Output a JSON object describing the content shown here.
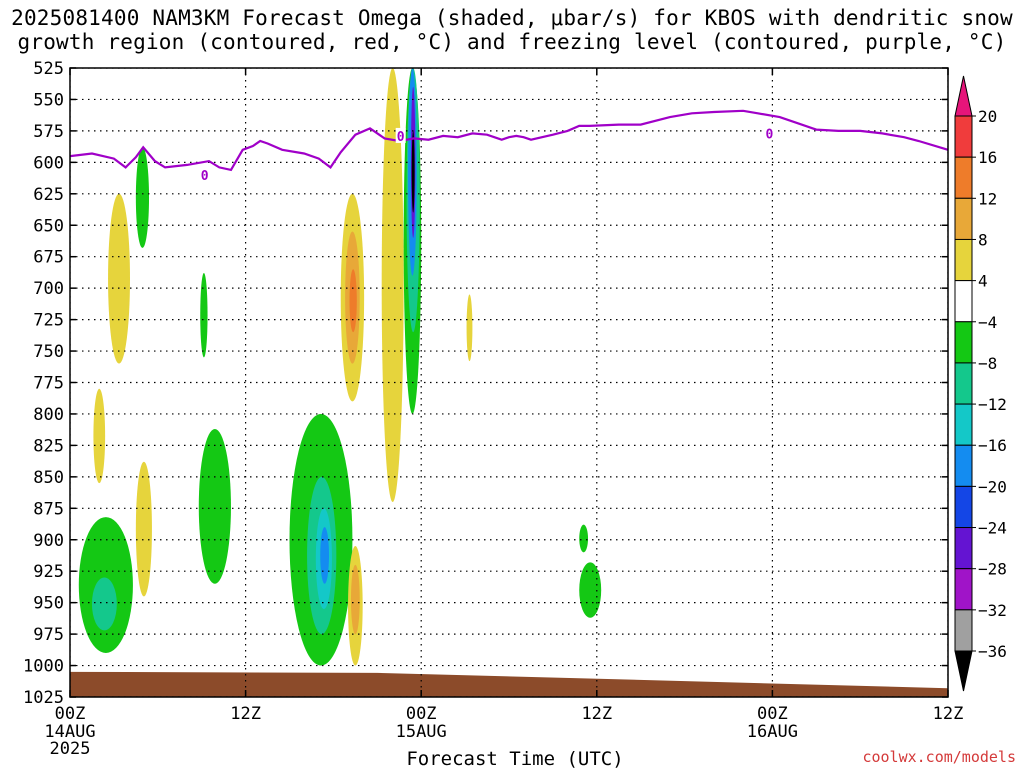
{
  "title": {
    "line1": "2025081400 NAM3KM Forecast Omega (shaded, μbar/s) for KBOS with dendritic snow",
    "line2": "growth region (contoured, red, °C) and freezing level (contoured, purple, °C)"
  },
  "credit": "coolwx.com/models",
  "chart_data": {
    "type": "heatmap",
    "title": "2025081400 NAM3KM Forecast Omega (shaded, μbar/s) for KBOS with dendritic snow growth region (contoured, red, °C) and freezing level (contoured, purple, °C)",
    "xlabel": "Forecast Time (UTC)",
    "ylabel": "",
    "x_range_hours": [
      0,
      60
    ],
    "y_range_hpa": [
      525,
      1025
    ],
    "y_ticks": [
      525,
      550,
      575,
      600,
      625,
      650,
      675,
      700,
      725,
      750,
      775,
      800,
      825,
      850,
      875,
      900,
      925,
      950,
      975,
      1000,
      1025
    ],
    "x_ticks": [
      {
        "hour": 0,
        "label": "00Z",
        "sub1": "14AUG",
        "sub2": "2025"
      },
      {
        "hour": 12,
        "label": "12Z",
        "sub1": "",
        "sub2": ""
      },
      {
        "hour": 24,
        "label": "00Z",
        "sub1": "15AUG",
        "sub2": ""
      },
      {
        "hour": 36,
        "label": "12Z",
        "sub1": "",
        "sub2": ""
      },
      {
        "hour": 48,
        "label": "00Z",
        "sub1": "16AUG",
        "sub2": ""
      },
      {
        "hour": 60,
        "label": "12Z",
        "sub1": "",
        "sub2": ""
      }
    ],
    "grid": "dotted",
    "colorbar": {
      "units": "μbar/s",
      "labels": [
        "20",
        "16",
        "12",
        "8",
        "4",
        "−4",
        "−8",
        "−12",
        "−16",
        "−20",
        "−24",
        "−28",
        "−32",
        "−36"
      ],
      "bins": [
        {
          "range": ">20",
          "color": "#e6157a"
        },
        {
          "range": "16 to 20",
          "color": "#f03c3c"
        },
        {
          "range": "12 to 16",
          "color": "#ee7c2a"
        },
        {
          "range": "8 to 12",
          "color": "#e8a838"
        },
        {
          "range": "4 to 8",
          "color": "#e6d43c"
        },
        {
          "range": "-4 to 4",
          "color": "#ffffff"
        },
        {
          "range": "-8 to -4",
          "color": "#14c814"
        },
        {
          "range": "-12 to -8",
          "color": "#14c88c"
        },
        {
          "range": "-16 to -12",
          "color": "#14c8c8"
        },
        {
          "range": "-20 to -16",
          "color": "#148cf0"
        },
        {
          "range": "-24 to -20",
          "color": "#1446e6"
        },
        {
          "range": "-28 to -24",
          "color": "#6414d2"
        },
        {
          "range": "-32 to -28",
          "color": "#a014c8"
        },
        {
          "range": "-36 to -32",
          "color": "#a0a0a0"
        },
        {
          "range": "<-36",
          "color": "#000000"
        }
      ]
    },
    "freezing_level": {
      "label": "0",
      "color": "#a000c8",
      "points": [
        [
          0,
          595
        ],
        [
          1.5,
          593
        ],
        [
          3,
          597
        ],
        [
          3.8,
          604
        ],
        [
          4.5,
          596
        ],
        [
          5,
          588
        ],
        [
          5.8,
          599
        ],
        [
          6.5,
          604
        ],
        [
          8,
          602
        ],
        [
          9.5,
          599
        ],
        [
          10.2,
          604
        ],
        [
          11,
          606
        ],
        [
          11.8,
          590
        ],
        [
          12.5,
          587
        ],
        [
          13,
          583
        ],
        [
          13.5,
          585
        ],
        [
          14.5,
          590
        ],
        [
          16,
          593
        ],
        [
          17,
          597
        ],
        [
          17.8,
          604
        ],
        [
          18.5,
          592
        ],
        [
          19.5,
          578
        ],
        [
          20.5,
          573
        ],
        [
          21.5,
          581
        ],
        [
          22.5,
          583
        ],
        [
          23.5,
          581
        ],
        [
          24.5,
          582
        ],
        [
          25.5,
          579
        ],
        [
          26.5,
          580
        ],
        [
          27.5,
          577
        ],
        [
          28.5,
          578
        ],
        [
          29.5,
          582
        ],
        [
          30,
          580
        ],
        [
          30.5,
          579
        ],
        [
          31,
          580
        ],
        [
          31.5,
          582
        ],
        [
          33,
          578
        ],
        [
          34,
          575
        ],
        [
          34.8,
          571
        ],
        [
          35.5,
          571
        ],
        [
          37.5,
          570
        ],
        [
          39,
          570
        ],
        [
          41,
          564
        ],
        [
          42.5,
          561
        ],
        [
          44,
          560
        ],
        [
          46,
          559
        ],
        [
          47,
          561
        ],
        [
          48.5,
          564
        ],
        [
          49.5,
          568
        ],
        [
          51,
          574
        ],
        [
          52.5,
          575
        ],
        [
          54,
          575
        ],
        [
          55.5,
          577
        ],
        [
          57,
          580
        ],
        [
          58,
          583
        ],
        [
          60,
          590
        ]
      ],
      "label_points": [
        [
          9.2,
          610
        ],
        [
          22.6,
          579
        ],
        [
          47.8,
          577
        ]
      ]
    },
    "omega_features": [
      {
        "id": "yellow-early-upper",
        "color": "#e6d43c",
        "x": [
          2.6,
          4.1
        ],
        "y": [
          625,
          760
        ],
        "note": "4 to 8"
      },
      {
        "id": "green-early-upper",
        "color": "#14c814",
        "x": [
          4.5,
          5.4
        ],
        "y": [
          588,
          668
        ],
        "note": "-4 to -8"
      },
      {
        "id": "yellow-early-mid",
        "color": "#e6d43c",
        "x": [
          1.6,
          2.4
        ],
        "y": [
          780,
          855
        ],
        "note": "4 to 8"
      },
      {
        "id": "yellow-early-low",
        "color": "#e6d43c",
        "x": [
          4.5,
          5.6
        ],
        "y": [
          838,
          945
        ],
        "note": "4 to 8"
      },
      {
        "id": "green-early-low",
        "color": "#14c814",
        "x": [
          0.6,
          4.3
        ],
        "y": [
          882,
          990
        ],
        "note": "-4 to -8"
      },
      {
        "id": "teal-early-low",
        "color": "#14c88c",
        "x": [
          1.5,
          3.2
        ],
        "y": [
          930,
          972
        ],
        "note": "-8 to -12"
      },
      {
        "id": "green-mid-upper",
        "color": "#14c814",
        "x": [
          8.9,
          9.4
        ],
        "y": [
          688,
          755
        ],
        "note": "-4 to -8"
      },
      {
        "id": "green-mid-low",
        "color": "#14c814",
        "x": [
          8.8,
          11.0
        ],
        "y": [
          812,
          935
        ],
        "note": "-4 to -8"
      },
      {
        "id": "green-afternoon-low",
        "color": "#14c814",
        "x": [
          15.0,
          19.3
        ],
        "y": [
          800,
          1000
        ],
        "note": "-4 to -8"
      },
      {
        "id": "teal-afternoon-low",
        "color": "#14c88c",
        "x": [
          16.2,
          18.2
        ],
        "y": [
          850,
          975
        ],
        "note": "-8 to -12"
      },
      {
        "id": "cyan-afternoon-low",
        "color": "#14c8c8",
        "x": [
          16.8,
          17.9
        ],
        "y": [
          875,
          955
        ],
        "note": "-12 to -16"
      },
      {
        "id": "blue-afternoon-low",
        "color": "#148cf0",
        "x": [
          17.1,
          17.7
        ],
        "y": [
          890,
          935
        ],
        "note": "-16 to -20"
      },
      {
        "id": "yellow-evening-mid",
        "color": "#e6d43c",
        "x": [
          18.5,
          20.1
        ],
        "y": [
          625,
          790
        ],
        "note": "4 to 8"
      },
      {
        "id": "orange-evening-mid",
        "color": "#e8a838",
        "x": [
          18.8,
          19.8
        ],
        "y": [
          655,
          760
        ],
        "note": "8 to 12"
      },
      {
        "id": "orange-evening-core",
        "color": "#ee7c2a",
        "x": [
          19.1,
          19.6
        ],
        "y": [
          685,
          735
        ],
        "note": "12 to 16"
      },
      {
        "id": "yellow-evening-low",
        "color": "#e6d43c",
        "x": [
          19.0,
          20.0
        ],
        "y": [
          905,
          1000
        ],
        "note": "4 to 8"
      },
      {
        "id": "orange-evening-low",
        "color": "#e8a838",
        "x": [
          19.2,
          19.8
        ],
        "y": [
          920,
          975
        ],
        "note": "8 to 12"
      },
      {
        "id": "yellow-strip-pre-00z",
        "color": "#e6d43c",
        "x": [
          21.3,
          22.8
        ],
        "y": [
          525,
          870
        ],
        "note": "4 to 8"
      },
      {
        "id": "green-00z-column",
        "color": "#14c814",
        "x": [
          22.8,
          24.0
        ],
        "y": [
          525,
          800
        ],
        "note": "-4 to -8"
      },
      {
        "id": "teal-00z-column",
        "color": "#14c88c",
        "x": [
          23.0,
          23.9
        ],
        "y": [
          525,
          735
        ],
        "note": "-8 to -12"
      },
      {
        "id": "blue-00z-column",
        "color": "#148cf0",
        "x": [
          23.1,
          23.7
        ],
        "y": [
          525,
          690
        ],
        "note": "-16 to -20"
      },
      {
        "id": "purple-00z-column",
        "color": "#6414d2",
        "x": [
          23.3,
          23.6
        ],
        "y": [
          540,
          660
        ],
        "note": "-24 to -28"
      },
      {
        "id": "black-00z-core",
        "color": "#000000",
        "x": [
          23.35,
          23.55
        ],
        "y": [
          575,
          640
        ],
        "note": "<-36"
      },
      {
        "id": "yellow-after-00z",
        "color": "#e6d43c",
        "x": [
          27.1,
          27.5
        ],
        "y": [
          705,
          758
        ],
        "note": "4 to 8"
      },
      {
        "id": "green-midday-upper",
        "color": "#14c814",
        "x": [
          34.8,
          35.4
        ],
        "y": [
          888,
          910
        ],
        "note": "-4 to -8"
      },
      {
        "id": "green-midday-low",
        "color": "#14c814",
        "x": [
          34.8,
          36.3
        ],
        "y": [
          918,
          962
        ],
        "note": "-4 to -8"
      }
    ],
    "terrain": {
      "color": "#8c4b2a",
      "surface_hpa_start": 1005,
      "surface_hpa_end": 1018
    }
  }
}
